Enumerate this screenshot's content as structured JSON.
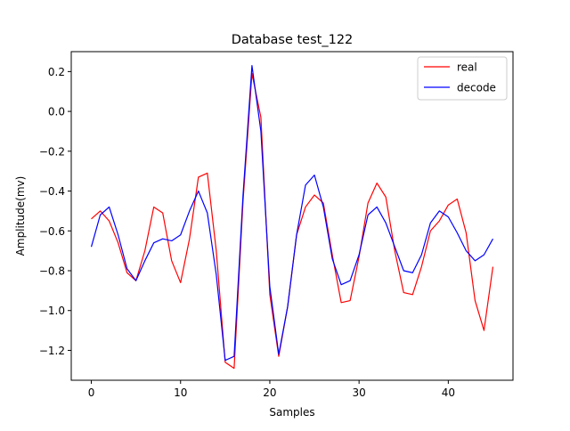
{
  "chart_data": {
    "type": "line",
    "title": "Database test_122",
    "xlabel": "Samples",
    "ylabel": "Amplitude(mv)",
    "xlim": [
      -2.25,
      47.25
    ],
    "ylim": [
      -1.35,
      0.3
    ],
    "xticks": [
      0,
      10,
      20,
      30,
      40
    ],
    "yticks": [
      -1.2,
      -1.0,
      -0.8,
      -0.6,
      -0.4,
      -0.2,
      0.0,
      0.2
    ],
    "xtick_labels": [
      "0",
      "10",
      "20",
      "30",
      "40"
    ],
    "ytick_labels": [
      "−1.2",
      "−1.0",
      "−0.8",
      "−0.6",
      "−0.4",
      "−0.2",
      "0.0",
      "0.2"
    ],
    "grid": false,
    "legend_position": "top-right",
    "x": [
      0,
      1,
      2,
      3,
      4,
      5,
      6,
      7,
      8,
      9,
      10,
      11,
      12,
      13,
      14,
      15,
      16,
      17,
      18,
      19,
      20,
      21,
      22,
      23,
      24,
      25,
      26,
      27,
      28,
      29,
      30,
      31,
      32,
      33,
      34,
      35,
      36,
      37,
      38,
      39,
      40,
      41,
      42,
      43,
      44,
      45
    ],
    "series": [
      {
        "name": "real",
        "color": "#ff0000",
        "values": [
          -0.54,
          -0.5,
          -0.55,
          -0.66,
          -0.81,
          -0.85,
          -0.7,
          -0.48,
          -0.51,
          -0.75,
          -0.86,
          -0.64,
          -0.33,
          -0.31,
          -0.7,
          -1.26,
          -1.29,
          -0.45,
          0.19,
          -0.03,
          -0.92,
          -1.23,
          -0.98,
          -0.62,
          -0.48,
          -0.42,
          -0.46,
          -0.72,
          -0.96,
          -0.95,
          -0.73,
          -0.46,
          -0.36,
          -0.43,
          -0.7,
          -0.91,
          -0.92,
          -0.78,
          -0.6,
          -0.55,
          -0.47,
          -0.44,
          -0.61,
          -0.95,
          -1.1,
          -0.78
        ]
      },
      {
        "name": "decode",
        "color": "#0000ff",
        "values": [
          -0.68,
          -0.52,
          -0.48,
          -0.62,
          -0.79,
          -0.85,
          -0.75,
          -0.66,
          -0.64,
          -0.65,
          -0.62,
          -0.5,
          -0.4,
          -0.51,
          -0.82,
          -1.25,
          -1.23,
          -0.42,
          0.23,
          -0.1,
          -0.88,
          -1.22,
          -0.98,
          -0.62,
          -0.37,
          -0.32,
          -0.48,
          -0.74,
          -0.87,
          -0.85,
          -0.72,
          -0.52,
          -0.48,
          -0.56,
          -0.68,
          -0.8,
          -0.81,
          -0.72,
          -0.56,
          -0.5,
          -0.53,
          -0.61,
          -0.7,
          -0.75,
          -0.72,
          -0.64
        ]
      }
    ]
  }
}
